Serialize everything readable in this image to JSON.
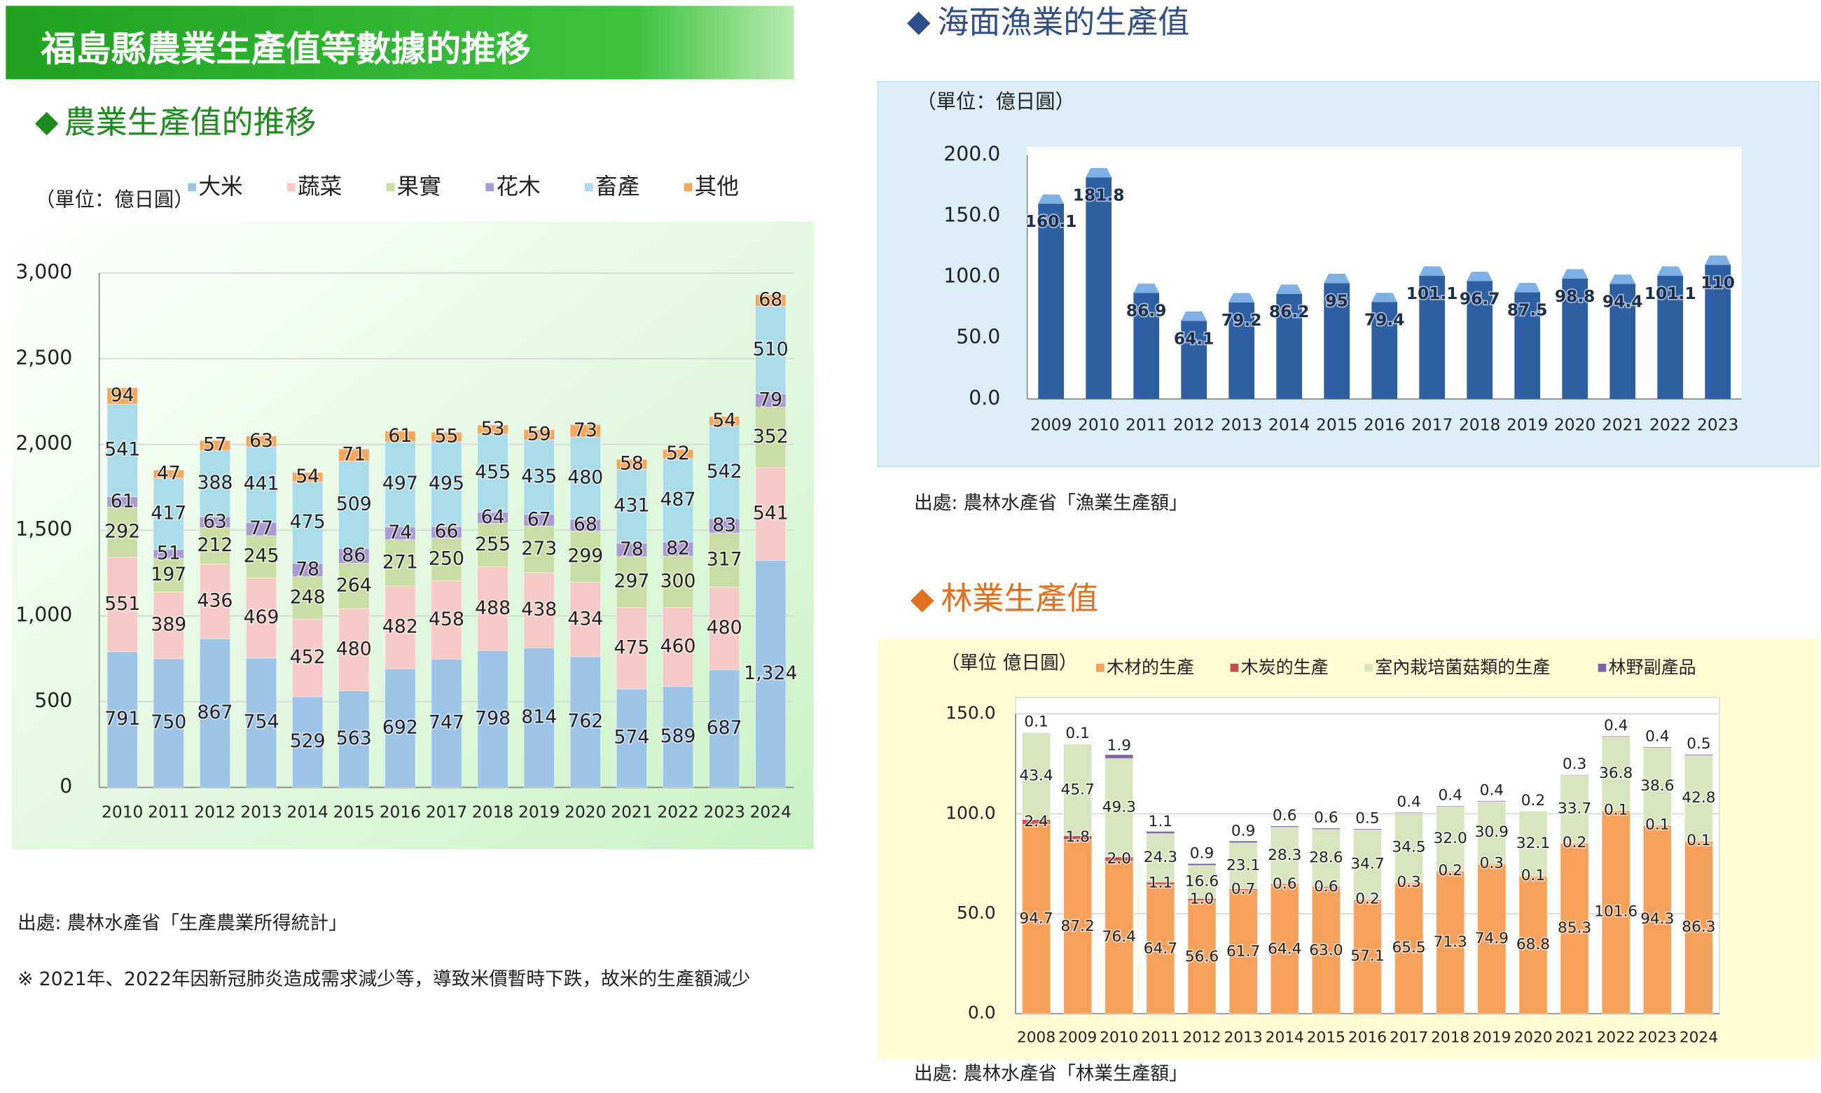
{
  "header": {
    "title": "福島縣農業生產值等數據的推移"
  },
  "chart_data": [
    {
      "type": "stacked_bar",
      "title": "農業生產值的推移",
      "unit": "（單位：億日圓）",
      "categories": [
        "2010",
        "2011",
        "2012",
        "2013",
        "2014",
        "2015",
        "2016",
        "2017",
        "2018",
        "2019",
        "2020",
        "2021",
        "2022",
        "2023",
        "2024"
      ],
      "series": [
        {
          "name": "大米",
          "color": "#9dc3e6",
          "values": [
            791,
            750,
            867,
            754,
            529,
            563,
            692,
            747,
            798,
            814,
            762,
            574,
            589,
            687,
            1324
          ],
          "value_labels": [
            "791",
            "750",
            "867",
            "754",
            "529",
            "563",
            "692",
            "747",
            "798",
            "814",
            "762",
            "574",
            "589",
            "687",
            "1,324"
          ]
        },
        {
          "name": "蔬菜",
          "color": "#f4c9c6",
          "values": [
            551,
            389,
            436,
            469,
            452,
            480,
            482,
            458,
            488,
            438,
            434,
            475,
            460,
            480,
            541
          ]
        },
        {
          "name": "果實",
          "color": "#c9dca4",
          "values": [
            292,
            197,
            212,
            245,
            248,
            264,
            271,
            250,
            255,
            273,
            299,
            297,
            300,
            317,
            352
          ]
        },
        {
          "name": "花木",
          "color": "#a99ad0",
          "values": [
            61,
            51,
            63,
            77,
            78,
            86,
            74,
            66,
            64,
            67,
            68,
            78,
            82,
            83,
            79
          ]
        },
        {
          "name": "畜產",
          "color": "#a9dbe8",
          "values": [
            541,
            417,
            388,
            441,
            475,
            509,
            497,
            495,
            455,
            435,
            480,
            431,
            487,
            542,
            510
          ]
        },
        {
          "name": "其他",
          "color": "#f5a65b",
          "values": [
            94,
            47,
            57,
            63,
            54,
            71,
            61,
            55,
            53,
            59,
            73,
            58,
            52,
            54,
            68
          ]
        }
      ],
      "ylim": [
        0,
        3000
      ],
      "yticks": [
        0,
        500,
        {
          "value": 1000,
          "label": "1,000"
        },
        {
          "value": 1500,
          "label": "1,500"
        },
        {
          "value": 2000,
          "label": "2,000"
        },
        {
          "value": 2500,
          "label": "2,500"
        },
        {
          "value": 3000,
          "label": "3,000"
        }
      ],
      "grid": true,
      "source": "出處: 農林水產省「生產農業所得統計」",
      "note": "※ 2021年、2022年因新冠肺炎造成需求減少等，導致米價暫時下跌，故米的生產額減少"
    },
    {
      "type": "bar",
      "title": "海面漁業的生產值",
      "unit": "（單位：億日圓）",
      "categories": [
        "2009",
        "2010",
        "2011",
        "2012",
        "2013",
        "2014",
        "2015",
        "2016",
        "2017",
        "2018",
        "2019",
        "2020",
        "2021",
        "2022",
        "2023"
      ],
      "series": [
        {
          "name": "海面漁業的生產值",
          "color": "#2e5fa3",
          "values": [
            160.1,
            181.8,
            86.9,
            64.1,
            79.2,
            86.2,
            95,
            79.4,
            101.1,
            96.7,
            87.5,
            98.8,
            94.4,
            101.1,
            110
          ]
        }
      ],
      "ylim": [
        0,
        200
      ],
      "yticks": [
        {
          "value": 0,
          "label": "0.0"
        },
        {
          "value": 50,
          "label": "50.0"
        },
        {
          "value": 100,
          "label": "100.0"
        },
        {
          "value": 150,
          "label": "150.0"
        },
        {
          "value": 200,
          "label": "200.0"
        }
      ],
      "grid": false,
      "source": "出處: 農林水產省「漁業生產額」"
    },
    {
      "type": "stacked_bar",
      "title": "林業生產值",
      "unit": "（單位 億日圓）",
      "categories": [
        "2008",
        "2009",
        "2010",
        "2011",
        "2012",
        "2013",
        "2014",
        "2015",
        "2016",
        "2017",
        "2018",
        "2019",
        "2020",
        "2021",
        "2022",
        "2023",
        "2024"
      ],
      "series": [
        {
          "name": "木材的生產",
          "color": "#f5a15c",
          "values": [
            94.7,
            87.2,
            76.4,
            64.7,
            56.6,
            61.7,
            64.4,
            63.0,
            57.1,
            65.5,
            71.3,
            74.9,
            68.8,
            85.3,
            101.6,
            94.3,
            86.3
          ],
          "value_labels": [
            "94.7",
            "87.2",
            "76.4",
            "64.7",
            "56.6",
            "61.7",
            "64.4",
            "63.0",
            "57.1",
            "65.5",
            "71.3",
            "74.9",
            "68.8",
            "85.3",
            "101.6",
            "94.3",
            "86.3"
          ]
        },
        {
          "name": "木炭的生產",
          "color": "#c0504d",
          "values": [
            2.4,
            1.8,
            2.0,
            1.1,
            1.0,
            0.7,
            0.6,
            0.6,
            0.2,
            0.3,
            0.2,
            0.3,
            0.1,
            0.2,
            0.1,
            0.1,
            0.1
          ],
          "value_labels": [
            "2.4",
            "1.8",
            "2.0",
            "1.1",
            "1.0",
            "0.7",
            "0.6",
            "0.6",
            "0.2",
            "0.3",
            "0.2",
            "0.3",
            "0.1",
            "0.2",
            "0.1",
            "0.1",
            "0.1"
          ]
        },
        {
          "name": "室內栽培菌菇類的生產",
          "color": "#d7e4bd",
          "values": [
            43.4,
            45.7,
            49.3,
            24.3,
            16.6,
            23.1,
            28.3,
            28.6,
            34.7,
            34.5,
            32.0,
            30.9,
            32.1,
            33.7,
            36.8,
            38.6,
            42.8
          ],
          "value_labels": [
            "43.4",
            "45.7",
            "49.3",
            "24.3",
            "16.6",
            "23.1",
            "28.3",
            "28.6",
            "34.7",
            "34.5",
            "32.0",
            "30.9",
            "32.1",
            "33.7",
            "36.8",
            "38.6",
            "42.8"
          ]
        },
        {
          "name": "林野副產品",
          "color": "#8064a2",
          "values": [
            0.1,
            0.1,
            1.9,
            1.1,
            0.9,
            0.9,
            0.6,
            0.6,
            0.5,
            0.4,
            0.4,
            0.4,
            0.2,
            0.3,
            0.4,
            0.4,
            0.5
          ]
        }
      ],
      "ylim": [
        0,
        150
      ],
      "yticks": [
        {
          "value": 0,
          "label": "0.0"
        },
        {
          "value": 50,
          "label": "50.0"
        },
        {
          "value": 100,
          "label": "100.0"
        },
        {
          "value": 150,
          "label": "150.0"
        }
      ],
      "grid": true,
      "source": "出處: 農林水產省「林業生產額」"
    }
  ]
}
